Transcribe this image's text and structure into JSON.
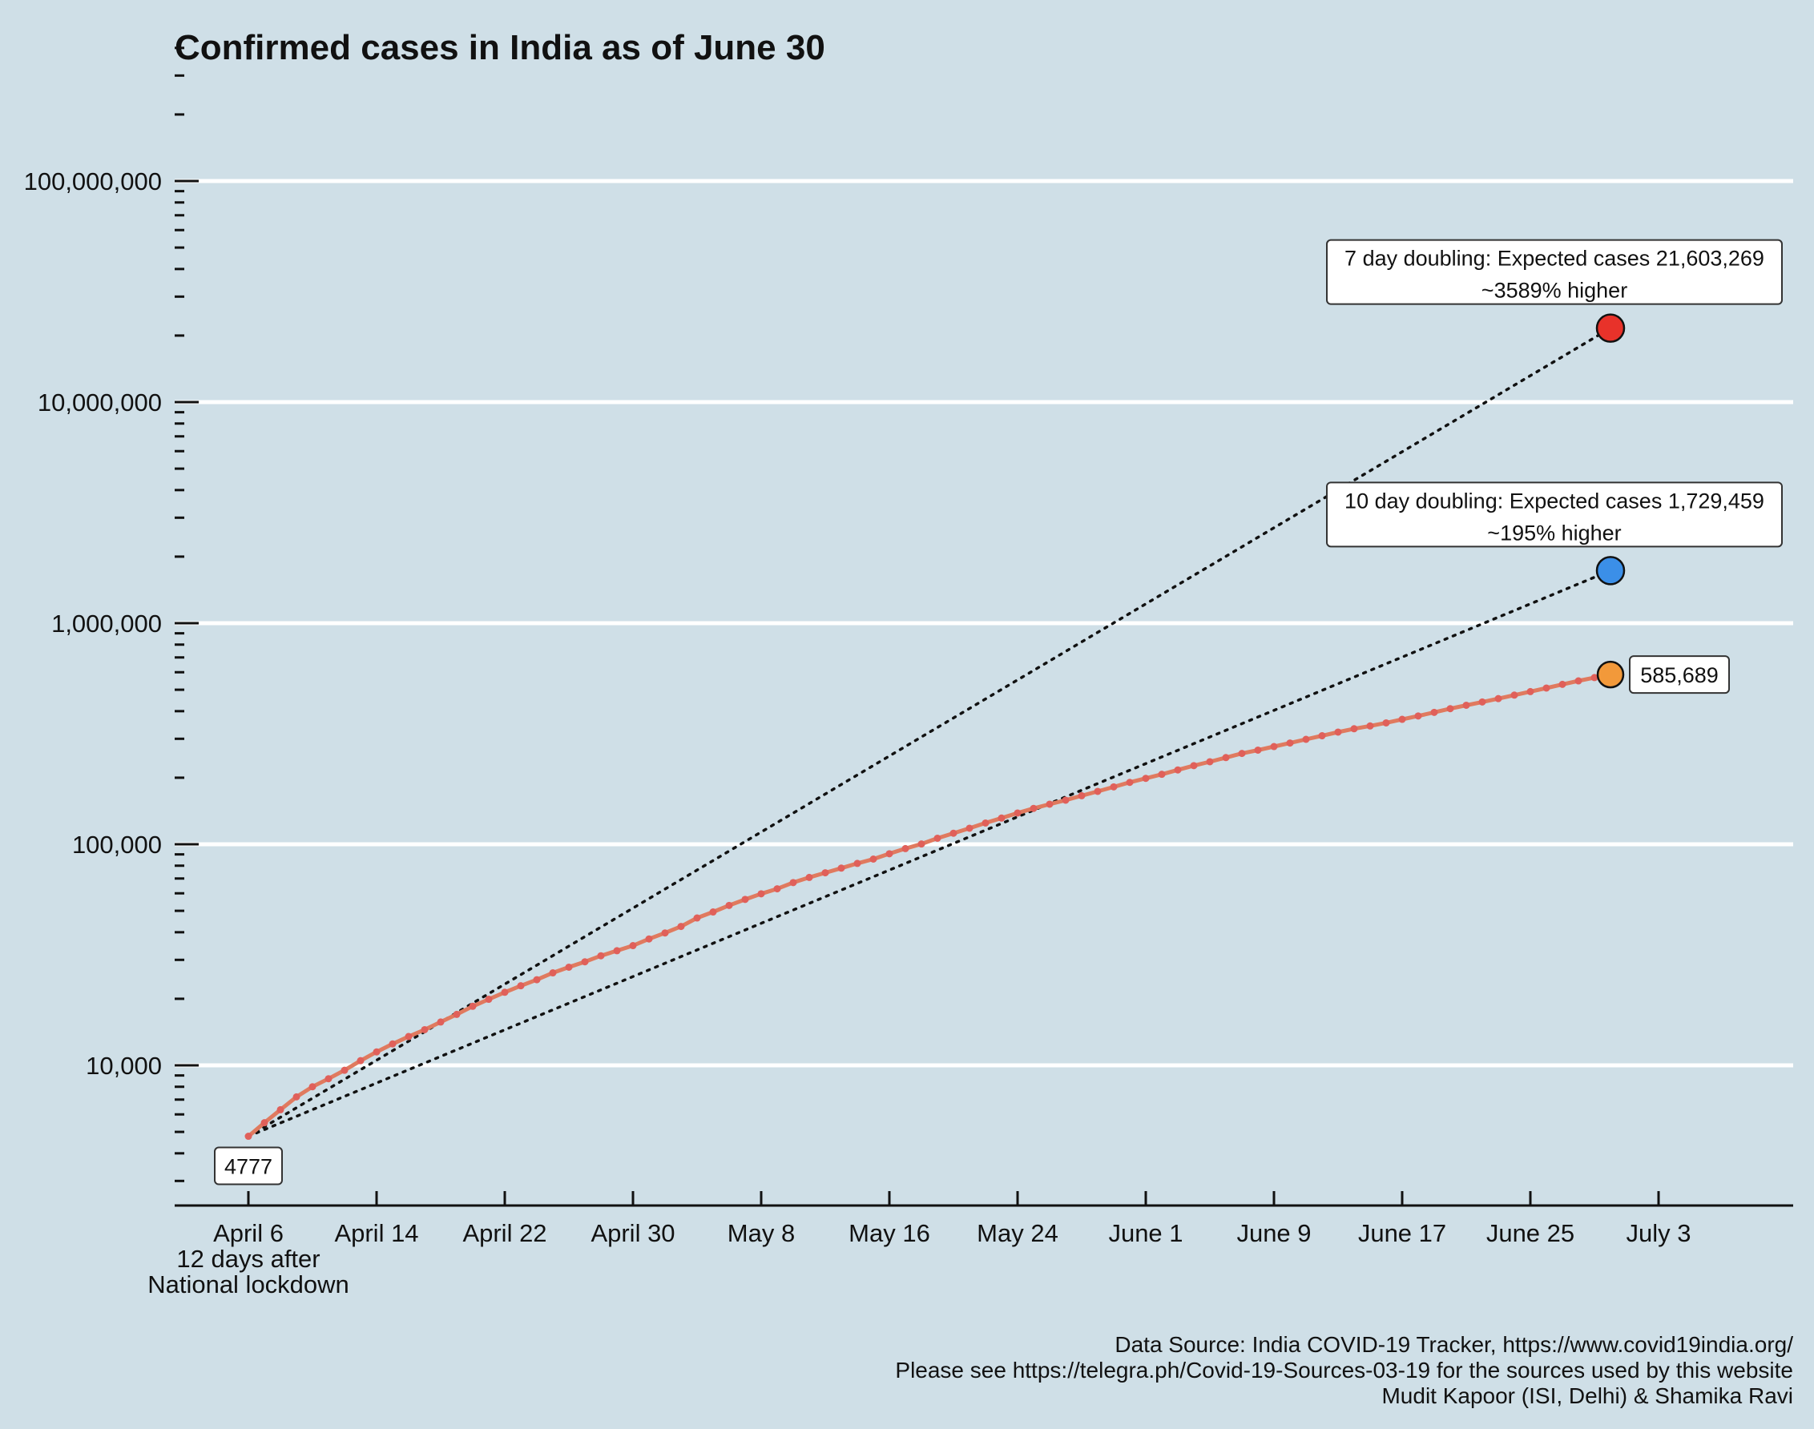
{
  "chart_data": {
    "type": "line",
    "title": "Confirmed cases in India as of June 30",
    "xlabel": "",
    "ylabel": "",
    "y_scale": "log10",
    "ylim": [
      2500,
      400000000
    ],
    "xlim": [
      "2020-04-01",
      "2020-07-09"
    ],
    "grid": {
      "horizontal": true,
      "vertical": false,
      "color": "#ffffff"
    },
    "y_ticks": [
      {
        "value": 10000,
        "label": "10,000"
      },
      {
        "value": 100000,
        "label": "100,000"
      },
      {
        "value": 1000000,
        "label": "1,000,000"
      },
      {
        "value": 10000000,
        "label": "10,000,000"
      },
      {
        "value": 100000000,
        "label": "100,000,000"
      }
    ],
    "x_ticks": [
      {
        "date": "2020-04-06",
        "label_lines": [
          "April 6",
          "12 days after",
          "National lockdown"
        ]
      },
      {
        "date": "2020-04-14",
        "label_lines": [
          "April 14"
        ]
      },
      {
        "date": "2020-04-22",
        "label_lines": [
          "April 22"
        ]
      },
      {
        "date": "2020-04-30",
        "label_lines": [
          "April 30"
        ]
      },
      {
        "date": "2020-05-08",
        "label_lines": [
          "May 8"
        ]
      },
      {
        "date": "2020-05-16",
        "label_lines": [
          "May 16"
        ]
      },
      {
        "date": "2020-05-24",
        "label_lines": [
          "May 24"
        ]
      },
      {
        "date": "2020-06-01",
        "label_lines": [
          "June 1"
        ]
      },
      {
        "date": "2020-06-09",
        "label_lines": [
          "June 9"
        ]
      },
      {
        "date": "2020-06-17",
        "label_lines": [
          "June 17"
        ]
      },
      {
        "date": "2020-06-25",
        "label_lines": [
          "June 25"
        ]
      },
      {
        "date": "2020-07-03",
        "label_lines": [
          "July 3"
        ]
      }
    ],
    "series": [
      {
        "color": "#e07a5f",
        "marker_color": "#e0605a",
        "points": [
          [
            "2020-04-06",
            4777
          ],
          [
            "2020-04-07",
            5500
          ],
          [
            "2020-04-08",
            6300
          ],
          [
            "2020-04-09",
            7200
          ],
          [
            "2020-04-10",
            8000
          ],
          [
            "2020-04-11",
            8700
          ],
          [
            "2020-04-12",
            9500
          ],
          [
            "2020-04-13",
            10500
          ],
          [
            "2020-04-14",
            11500
          ],
          [
            "2020-04-15",
            12500
          ],
          [
            "2020-04-16",
            13500
          ],
          [
            "2020-04-17",
            14500
          ],
          [
            "2020-04-18",
            15700
          ],
          [
            "2020-04-19",
            17000
          ],
          [
            "2020-04-20",
            18500
          ],
          [
            "2020-04-21",
            19900
          ],
          [
            "2020-04-22",
            21400
          ],
          [
            "2020-04-23",
            22900
          ],
          [
            "2020-04-24",
            24400
          ],
          [
            "2020-04-25",
            26200
          ],
          [
            "2020-04-26",
            27800
          ],
          [
            "2020-04-27",
            29400
          ],
          [
            "2020-04-28",
            31300
          ],
          [
            "2020-04-29",
            33000
          ],
          [
            "2020-04-30",
            34800
          ],
          [
            "2020-05-01",
            37300
          ],
          [
            "2020-05-02",
            39700
          ],
          [
            "2020-05-03",
            42500
          ],
          [
            "2020-05-04",
            46400
          ],
          [
            "2020-05-05",
            49400
          ],
          [
            "2020-05-06",
            52900
          ],
          [
            "2020-05-07",
            56300
          ],
          [
            "2020-05-08",
            59700
          ],
          [
            "2020-05-09",
            62900
          ],
          [
            "2020-05-10",
            67100
          ],
          [
            "2020-05-11",
            70800
          ],
          [
            "2020-05-12",
            74300
          ],
          [
            "2020-05-13",
            78000
          ],
          [
            "2020-05-14",
            81900
          ],
          [
            "2020-05-15",
            85700
          ],
          [
            "2020-05-16",
            90600
          ],
          [
            "2020-05-17",
            95600
          ],
          [
            "2020-05-18",
            100300
          ],
          [
            "2020-05-19",
            106500
          ],
          [
            "2020-05-20",
            112200
          ],
          [
            "2020-05-21",
            118200
          ],
          [
            "2020-05-22",
            124800
          ],
          [
            "2020-05-23",
            131400
          ],
          [
            "2020-05-24",
            138500
          ],
          [
            "2020-05-25",
            145300
          ],
          [
            "2020-05-26",
            151800
          ],
          [
            "2020-05-27",
            158300
          ],
          [
            "2020-05-28",
            165800
          ],
          [
            "2020-05-29",
            173500
          ],
          [
            "2020-05-30",
            181800
          ],
          [
            "2020-05-31",
            190500
          ],
          [
            "2020-06-01",
            198700
          ],
          [
            "2020-06-02",
            207200
          ],
          [
            "2020-06-03",
            216900
          ],
          [
            "2020-06-04",
            226800
          ],
          [
            "2020-06-05",
            236200
          ],
          [
            "2020-06-06",
            246600
          ],
          [
            "2020-06-07",
            257500
          ],
          [
            "2020-06-08",
            266600
          ],
          [
            "2020-06-09",
            276600
          ],
          [
            "2020-06-10",
            287100
          ],
          [
            "2020-06-11",
            298300
          ],
          [
            "2020-06-12",
            309600
          ],
          [
            "2020-06-13",
            321600
          ],
          [
            "2020-06-14",
            333000
          ],
          [
            "2020-06-15",
            343000
          ],
          [
            "2020-06-16",
            354100
          ],
          [
            "2020-06-17",
            367300
          ],
          [
            "2020-06-18",
            380500
          ],
          [
            "2020-06-19",
            395000
          ],
          [
            "2020-06-20",
            410500
          ],
          [
            "2020-06-21",
            425300
          ],
          [
            "2020-06-22",
            440200
          ],
          [
            "2020-06-23",
            455900
          ],
          [
            "2020-06-24",
            472800
          ],
          [
            "2020-06-25",
            490400
          ],
          [
            "2020-06-26",
            508900
          ],
          [
            "2020-06-27",
            528800
          ],
          [
            "2020-06-28",
            548300
          ],
          [
            "2020-06-29",
            567500
          ],
          [
            "2020-06-30",
            585689
          ]
        ]
      }
    ],
    "projections": [
      {
        "start": [
          "2020-04-06",
          4777
        ],
        "end": [
          "2020-06-30",
          21603269
        ],
        "marker_color": "#e8322a",
        "label_lines": [
          "7 day doubling: Expected cases 21,603,269",
          "~3589% higher"
        ]
      },
      {
        "start": [
          "2020-04-06",
          4777
        ],
        "end": [
          "2020-06-30",
          1729459
        ],
        "marker_color": "#3b8fe8",
        "label_lines": [
          "10 day doubling: Expected cases 1,729,459",
          "~195% higher"
        ]
      }
    ],
    "end_point": {
      "date": "2020-06-30",
      "value": 585689,
      "label": "585,689",
      "marker_color": "#f2993a"
    },
    "start_point": {
      "date": "2020-04-06",
      "value": 4777,
      "label": "4777"
    },
    "credits": [
      "Data Source: India COVID-19 Tracker, https://www.covid19india.org/",
      "Please see https://telegra.ph/Covid-19-Sources-03-19 for the sources used by this website",
      "Mudit Kapoor (ISI, Delhi) & Shamika Ravi"
    ],
    "colors": {
      "background": "#cfdfe7",
      "grid": "#ffffff",
      "line": "#e07a5f",
      "axis": "#111111"
    }
  }
}
